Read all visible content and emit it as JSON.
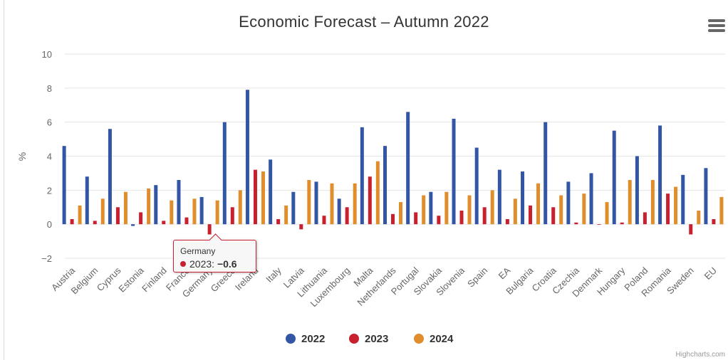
{
  "chart_data": {
    "type": "bar",
    "title": "Economic Forecast – Autumn 2022",
    "ylabel": "%",
    "xlabel": "",
    "ylim": [
      -2,
      10
    ],
    "yticks": [
      -2,
      0,
      2,
      4,
      6,
      8,
      10
    ],
    "ytick_labels": [
      "−2",
      "0",
      "2",
      "4",
      "6",
      "8",
      "10"
    ],
    "grid": true,
    "legend": "bottom-center",
    "categories": [
      "Austria",
      "Belgium",
      "Cyprus",
      "Estonia",
      "Finland",
      "France",
      "Germany",
      "Greece",
      "Ireland",
      "Italy",
      "Latvia",
      "Lithuania",
      "Luxembourg",
      "Malta",
      "Netherlands",
      "Portugal",
      "Slovakia",
      "Slovenia",
      "Spain",
      "EA",
      "Bulgaria",
      "Croatia",
      "Czechia",
      "Denmark",
      "Hungary",
      "Poland",
      "Romania",
      "Sweden",
      "EU"
    ],
    "series": [
      {
        "name": "2022",
        "color": "#3355a6",
        "values": [
          4.6,
          2.8,
          5.6,
          -0.1,
          2.3,
          2.6,
          1.6,
          6.0,
          7.9,
          3.8,
          1.9,
          2.5,
          1.5,
          5.7,
          4.6,
          6.6,
          1.9,
          6.2,
          4.5,
          3.2,
          3.1,
          6.0,
          2.5,
          3.0,
          5.5,
          4.0,
          5.8,
          2.9,
          3.3
        ]
      },
      {
        "name": "2023",
        "color": "#c8202e",
        "values": [
          0.3,
          0.2,
          1.0,
          0.7,
          0.2,
          0.4,
          -0.6,
          1.0,
          3.2,
          0.3,
          -0.3,
          0.5,
          1.0,
          2.8,
          0.6,
          0.7,
          0.5,
          0.8,
          1.0,
          0.3,
          1.1,
          1.0,
          0.1,
          0.0,
          0.1,
          0.7,
          1.8,
          -0.6,
          0.3
        ]
      },
      {
        "name": "2024",
        "color": "#e08e2c",
        "values": [
          1.1,
          1.5,
          1.9,
          2.1,
          1.4,
          1.5,
          1.4,
          2.0,
          3.1,
          1.1,
          2.6,
          2.4,
          2.4,
          3.7,
          1.3,
          1.7,
          1.9,
          1.7,
          2.0,
          1.5,
          2.4,
          1.7,
          1.8,
          1.3,
          2.6,
          2.6,
          2.2,
          0.8,
          1.6
        ]
      }
    ],
    "tooltip": {
      "category": "Germany",
      "series": "2023",
      "value": "−0.6"
    }
  },
  "menu": {
    "icon": "hamburger-menu-icon"
  },
  "credits": "Highcharts.com"
}
